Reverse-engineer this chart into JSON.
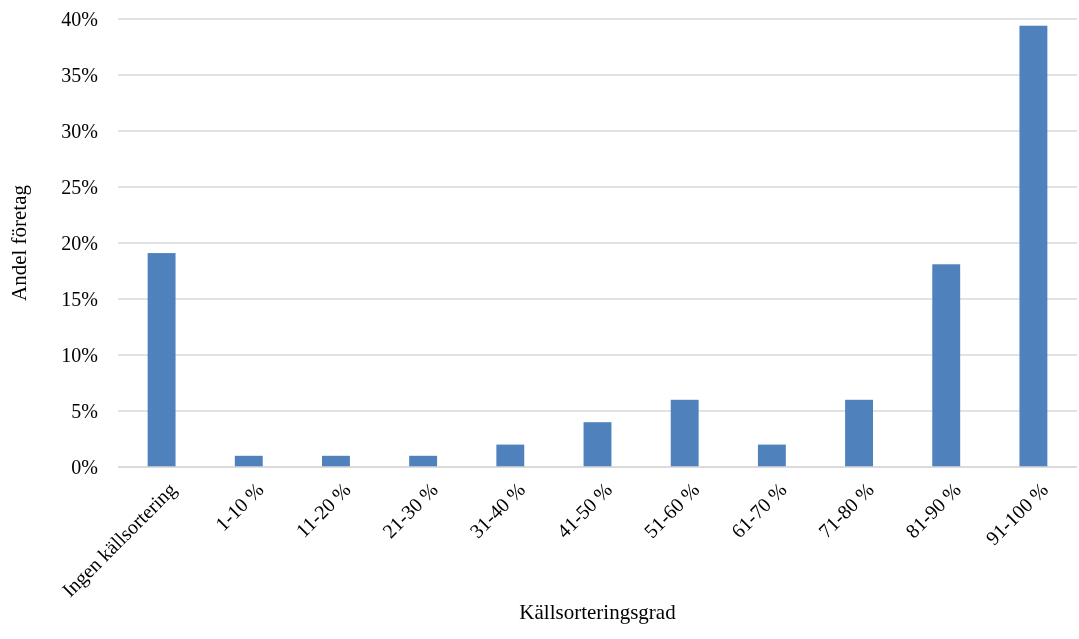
{
  "chart_data": {
    "type": "bar",
    "xlabel": "Källsorteringsgrad",
    "ylabel": "Andel företag",
    "categories": [
      "Ingen källsortering",
      "1-10 %",
      "11-20 %",
      "21-30 %",
      "31-40 %",
      "41-50 %",
      "51-60 %",
      "61-70 %",
      "71-80 %",
      "81-90 %",
      "91-100 %"
    ],
    "values": [
      19.1,
      1,
      1,
      1,
      2,
      4,
      6,
      2,
      6,
      18.1,
      39.4
    ],
    "color": "#4f81bd",
    "ylim": [
      0,
      40
    ],
    "yticks": [
      {
        "value": 0,
        "label": "0%"
      },
      {
        "value": 5,
        "label": "5%"
      },
      {
        "value": 10,
        "label": "10%"
      },
      {
        "value": 15,
        "label": "15%"
      },
      {
        "value": 20,
        "label": "20%"
      },
      {
        "value": 25,
        "label": "25%"
      },
      {
        "value": 30,
        "label": "30%"
      },
      {
        "value": 35,
        "label": "35%"
      },
      {
        "value": 40,
        "label": "40%"
      }
    ],
    "grid": "y"
  }
}
